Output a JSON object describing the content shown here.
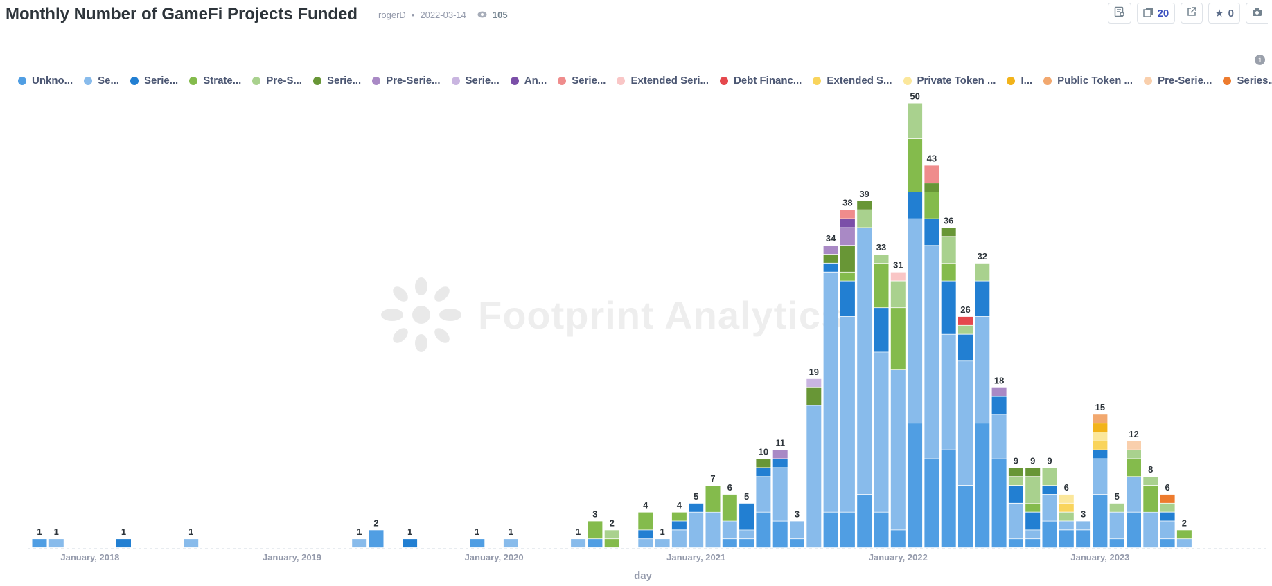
{
  "header": {
    "title": "Monthly Number of GameFi Projects Funded",
    "author": "rogerD",
    "date": "2022-03-14",
    "views": "105"
  },
  "toolbar": {
    "copies": "20",
    "stars": "0"
  },
  "watermark": "Footprint Analytics",
  "colors": {
    "Unkno...": "#509ee3",
    "Se...": "#88bbeb",
    "Serie...1": "#227fd2",
    "Strate...": "#84bb4c",
    "Pre-S...": "#a9d18e",
    "Serie...2": "#689636",
    "Pre-Serie...1": "#a989c5",
    "Serie...3": "#c9b5e0",
    "An...": "#7b4fa8",
    "Serie...4": "#ef8c8c",
    "Extended Seri...": "#f9c6c6",
    "Debt Financ...": "#e5484d",
    "Extended S...": "#f9d45c",
    "Private Token ...": "#fbe79b",
    "I...": "#f2b31a",
    "Public Token ...": "#f2a86f",
    "Pre-Serie...2": "#f9cfac",
    "Series...": "#ed7b2e"
  },
  "chart_data": {
    "type": "bar",
    "stacked": true,
    "xlabel": "day",
    "ylabel": "",
    "ylim": [
      0,
      52
    ],
    "x_ticks": [
      "January, 2018",
      "January, 2019",
      "January, 2020",
      "January, 2021",
      "January, 2022",
      "January, 2023"
    ],
    "legend_position": "top",
    "series_names": [
      "Unkno...",
      "Se...",
      "Serie...",
      "Strate...",
      "Pre-S...",
      "Serie...",
      "Pre-Serie...",
      "Serie...",
      "An...",
      "Serie...",
      "Extended Seri...",
      "Debt Financ...",
      "Extended S...",
      "Private Token ...",
      "I...",
      "Public Token ...",
      "Pre-Serie...",
      "Series..."
    ],
    "series_keys": [
      "Unkno...",
      "Se...",
      "Serie...1",
      "Strate...",
      "Pre-S...",
      "Serie...2",
      "Pre-Serie...1",
      "Serie...3",
      "An...",
      "Serie...4",
      "Extended Seri...",
      "Debt Financ...",
      "Extended S...",
      "Private Token ...",
      "I...",
      "Public Token ...",
      "Pre-Serie...2",
      "Series..."
    ],
    "months": [
      {
        "month": "2017-10",
        "total": 1,
        "stack": [
          [
            "Unkno...",
            1
          ]
        ]
      },
      {
        "month": "2017-11",
        "total": 1,
        "stack": [
          [
            "Se...",
            1
          ]
        ]
      },
      {
        "month": "2018-03",
        "total": 1,
        "stack": [
          [
            "Serie...1",
            1
          ]
        ]
      },
      {
        "month": "2018-07",
        "total": 1,
        "stack": [
          [
            "Se...",
            1
          ]
        ]
      },
      {
        "month": "2019-05",
        "total": 1,
        "stack": [
          [
            "Se...",
            1
          ]
        ]
      },
      {
        "month": "2019-06",
        "total": 2,
        "stack": [
          [
            "Unkno...",
            2
          ]
        ]
      },
      {
        "month": "2019-08",
        "total": 1,
        "stack": [
          [
            "Serie...1",
            1
          ]
        ]
      },
      {
        "month": "2019-12",
        "total": 1,
        "stack": [
          [
            "Unkno...",
            1
          ]
        ]
      },
      {
        "month": "2020-02",
        "total": 1,
        "stack": [
          [
            "Se...",
            1
          ]
        ]
      },
      {
        "month": "2020-06",
        "total": 1,
        "stack": [
          [
            "Se...",
            1
          ]
        ]
      },
      {
        "month": "2020-07",
        "total": 3,
        "stack": [
          [
            "Unkno...",
            1
          ],
          [
            "Strate...",
            2
          ]
        ]
      },
      {
        "month": "2020-08",
        "total": 2,
        "stack": [
          [
            "Strate...",
            1
          ],
          [
            "Pre-S...",
            1
          ]
        ]
      },
      {
        "month": "2020-10",
        "total": 4,
        "stack": [
          [
            "Se...",
            1
          ],
          [
            "Serie...1",
            1
          ],
          [
            "Strate...",
            2
          ]
        ]
      },
      {
        "month": "2020-11",
        "total": 1,
        "stack": [
          [
            "Se...",
            1
          ]
        ]
      },
      {
        "month": "2020-12",
        "total": 4,
        "stack": [
          [
            "Se...",
            2
          ],
          [
            "Serie...1",
            1
          ],
          [
            "Strate...",
            1
          ]
        ]
      },
      {
        "month": "2021-01",
        "total": 5,
        "stack": [
          [
            "Se...",
            4
          ],
          [
            "Serie...1",
            1
          ]
        ]
      },
      {
        "month": "2021-02",
        "total": 7,
        "stack": [
          [
            "Se...",
            4
          ],
          [
            "Strate...",
            3
          ]
        ]
      },
      {
        "month": "2021-03",
        "total": 6,
        "stack": [
          [
            "Unkno...",
            1
          ],
          [
            "Se...",
            2
          ],
          [
            "Strate...",
            3
          ]
        ]
      },
      {
        "month": "2021-04",
        "total": 5,
        "stack": [
          [
            "Unkno...",
            1
          ],
          [
            "Se...",
            1
          ],
          [
            "Serie...1",
            3
          ]
        ]
      },
      {
        "month": "2021-05",
        "total": 10,
        "stack": [
          [
            "Unkno...",
            4
          ],
          [
            "Se...",
            4
          ],
          [
            "Serie...1",
            1
          ],
          [
            "Serie...2",
            1
          ]
        ]
      },
      {
        "month": "2021-06",
        "total": 11,
        "stack": [
          [
            "Unkno...",
            3
          ],
          [
            "Se...",
            6
          ],
          [
            "Serie...1",
            1
          ],
          [
            "Pre-Serie...1",
            1
          ]
        ]
      },
      {
        "month": "2021-07",
        "total": 3,
        "stack": [
          [
            "Unkno...",
            1
          ],
          [
            "Se...",
            2
          ]
        ]
      },
      {
        "month": "2021-08",
        "total": 19,
        "stack": [
          [
            "Se...",
            16
          ],
          [
            "Serie...2",
            2
          ],
          [
            "Serie...3",
            1
          ]
        ]
      },
      {
        "month": "2021-09",
        "total": 34,
        "stack": [
          [
            "Unkno...",
            4
          ],
          [
            "Se...",
            27
          ],
          [
            "Serie...1",
            1
          ],
          [
            "Serie...2",
            1
          ],
          [
            "Pre-Serie...1",
            1
          ]
        ]
      },
      {
        "month": "2021-10",
        "total": 38,
        "stack": [
          [
            "Unkno...",
            4
          ],
          [
            "Se...",
            22
          ],
          [
            "Serie...1",
            4
          ],
          [
            "Strate...",
            1
          ],
          [
            "Serie...2",
            3
          ],
          [
            "Pre-Serie...1",
            2
          ],
          [
            "An...",
            1
          ],
          [
            "Serie...4",
            1
          ]
        ]
      },
      {
        "month": "2021-11",
        "total": 39,
        "stack": [
          [
            "Unkno...",
            6
          ],
          [
            "Se...",
            30
          ],
          [
            "Pre-S...",
            2
          ],
          [
            "Serie...2",
            1
          ]
        ]
      },
      {
        "month": "2021-12",
        "total": 33,
        "stack": [
          [
            "Unkno...",
            4
          ],
          [
            "Se...",
            18
          ],
          [
            "Serie...1",
            5
          ],
          [
            "Strate...",
            5
          ],
          [
            "Pre-S...",
            1
          ]
        ]
      },
      {
        "month": "2022-01",
        "total": 31,
        "stack": [
          [
            "Unkno...",
            2
          ],
          [
            "Se...",
            18
          ],
          [
            "Strate...",
            7
          ],
          [
            "Pre-S...",
            3
          ],
          [
            "Extended Seri...",
            1
          ]
        ]
      },
      {
        "month": "2022-02",
        "total": 50,
        "stack": [
          [
            "Unkno...",
            14
          ],
          [
            "Se...",
            23
          ],
          [
            "Serie...1",
            3
          ],
          [
            "Strate...",
            6
          ],
          [
            "Pre-S...",
            4
          ]
        ]
      },
      {
        "month": "2022-03",
        "total": 43,
        "stack": [
          [
            "Unkno...",
            10
          ],
          [
            "Se...",
            24
          ],
          [
            "Serie...1",
            3
          ],
          [
            "Strate...",
            3
          ],
          [
            "Serie...2",
            1
          ],
          [
            "Serie...4",
            2
          ]
        ]
      },
      {
        "month": "2022-04",
        "total": 36,
        "stack": [
          [
            "Unkno...",
            11
          ],
          [
            "Se...",
            13
          ],
          [
            "Serie...1",
            6
          ],
          [
            "Strate...",
            2
          ],
          [
            "Pre-S...",
            3
          ],
          [
            "Serie...2",
            1
          ]
        ]
      },
      {
        "month": "2022-05",
        "total": 26,
        "stack": [
          [
            "Unkno...",
            7
          ],
          [
            "Se...",
            14
          ],
          [
            "Serie...1",
            3
          ],
          [
            "Pre-S...",
            1
          ],
          [
            "Debt Financ...",
            1
          ]
        ]
      },
      {
        "month": "2022-06",
        "total": 32,
        "stack": [
          [
            "Unkno...",
            14
          ],
          [
            "Se...",
            12
          ],
          [
            "Serie...1",
            4
          ],
          [
            "Pre-S...",
            2
          ]
        ]
      },
      {
        "month": "2022-07",
        "total": 18,
        "stack": [
          [
            "Unkno...",
            10
          ],
          [
            "Se...",
            5
          ],
          [
            "Serie...1",
            2
          ],
          [
            "Pre-Serie...1",
            1
          ]
        ]
      },
      {
        "month": "2022-08",
        "total": 9,
        "stack": [
          [
            "Unkno...",
            1
          ],
          [
            "Se...",
            4
          ],
          [
            "Serie...1",
            2
          ],
          [
            "Pre-S...",
            1
          ],
          [
            "Serie...2",
            1
          ]
        ]
      },
      {
        "month": "2022-09",
        "total": 9,
        "stack": [
          [
            "Unkno...",
            1
          ],
          [
            "Se...",
            1
          ],
          [
            "Serie...1",
            2
          ],
          [
            "Strate...",
            1
          ],
          [
            "Pre-S...",
            3
          ],
          [
            "Serie...2",
            1
          ]
        ]
      },
      {
        "month": "2022-10",
        "total": 9,
        "stack": [
          [
            "Unkno...",
            3
          ],
          [
            "Se...",
            3
          ],
          [
            "Serie...1",
            1
          ],
          [
            "Pre-S...",
            2
          ]
        ]
      },
      {
        "month": "2022-11",
        "total": 6,
        "stack": [
          [
            "Unkno...",
            2
          ],
          [
            "Se...",
            1
          ],
          [
            "Pre-S...",
            1
          ],
          [
            "Extended S...",
            1
          ],
          [
            "Private Token ...",
            1
          ]
        ]
      },
      {
        "month": "2022-12",
        "total": 3,
        "stack": [
          [
            "Unkno...",
            2
          ],
          [
            "Se...",
            1
          ]
        ]
      },
      {
        "month": "2023-01",
        "total": 15,
        "stack": [
          [
            "Unkno...",
            6
          ],
          [
            "Se...",
            4
          ],
          [
            "Serie...1",
            1
          ],
          [
            "Extended S...",
            1
          ],
          [
            "Private Token ...",
            1
          ],
          [
            "I...",
            1
          ],
          [
            "Public Token ...",
            1
          ]
        ]
      },
      {
        "month": "2023-02",
        "total": 5,
        "stack": [
          [
            "Unkno...",
            1
          ],
          [
            "Se...",
            3
          ],
          [
            "Pre-S...",
            1
          ]
        ]
      },
      {
        "month": "2023-03",
        "total": 12,
        "stack": [
          [
            "Unkno...",
            4
          ],
          [
            "Se...",
            4
          ],
          [
            "Strate...",
            2
          ],
          [
            "Pre-S...",
            1
          ],
          [
            "Pre-Serie...2",
            1
          ]
        ]
      },
      {
        "month": "2023-04",
        "total": 8,
        "stack": [
          [
            "Se...",
            4
          ],
          [
            "Strate...",
            3
          ],
          [
            "Pre-S...",
            1
          ]
        ]
      },
      {
        "month": "2023-05",
        "total": 6,
        "stack": [
          [
            "Unkno...",
            1
          ],
          [
            "Se...",
            2
          ],
          [
            "Serie...1",
            1
          ],
          [
            "Pre-S...",
            1
          ],
          [
            "Series...",
            1
          ]
        ]
      },
      {
        "month": "2023-06",
        "total": 2,
        "stack": [
          [
            "Se...",
            1
          ],
          [
            "Strate...",
            1
          ]
        ]
      }
    ]
  }
}
